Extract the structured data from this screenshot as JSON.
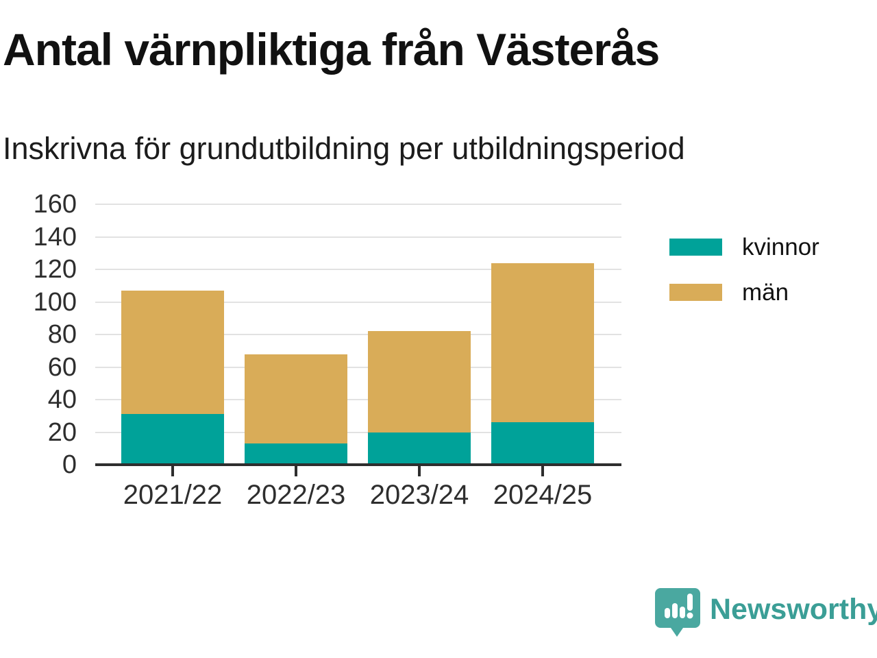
{
  "chart_data": {
    "type": "bar",
    "stacked": true,
    "title": "Antal värnpliktiga från Västerås",
    "subtitle": "Inskrivna för grundutbildning per utbildningsperiod",
    "categories": [
      "2021/22",
      "2022/23",
      "2023/24",
      "2024/25"
    ],
    "series": [
      {
        "name": "kvinnor",
        "color": "#00a299",
        "values": [
          31,
          13,
          20,
          26
        ]
      },
      {
        "name": "män",
        "color": "#d9ac58",
        "values": [
          76,
          55,
          62,
          98
        ]
      }
    ],
    "stack_totals": [
      107,
      68,
      82,
      124
    ],
    "ylim": [
      0,
      160
    ],
    "ytick_step": 20,
    "grid": true,
    "legend_position": "right",
    "axis_color": "#2e2e2e",
    "gridline_color": "#e2e2e2"
  },
  "branding": {
    "wordmark": "Newsworthy",
    "brand_color": "#3b9e96",
    "logo_icon": "speech-bubble-bar-chart-exclamation"
  }
}
